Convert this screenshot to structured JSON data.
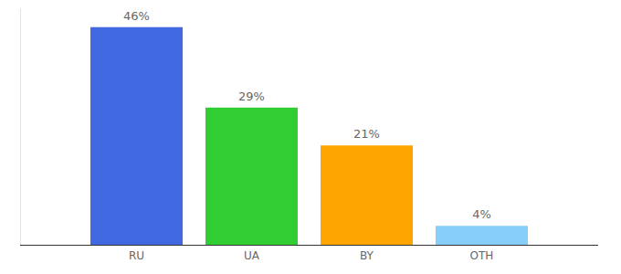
{
  "chart_data": {
    "type": "bar",
    "categories": [
      "RU",
      "UA",
      "BY",
      "OTH"
    ],
    "values": [
      46,
      29,
      21,
      4
    ],
    "value_labels": [
      "46%",
      "29%",
      "21%",
      "4%"
    ],
    "colors": [
      "#4169e1",
      "#32cd32",
      "#ffa500",
      "#87cefa"
    ],
    "ylim": [
      0,
      50
    ],
    "data_labels": true,
    "tick_labels": "x"
  }
}
